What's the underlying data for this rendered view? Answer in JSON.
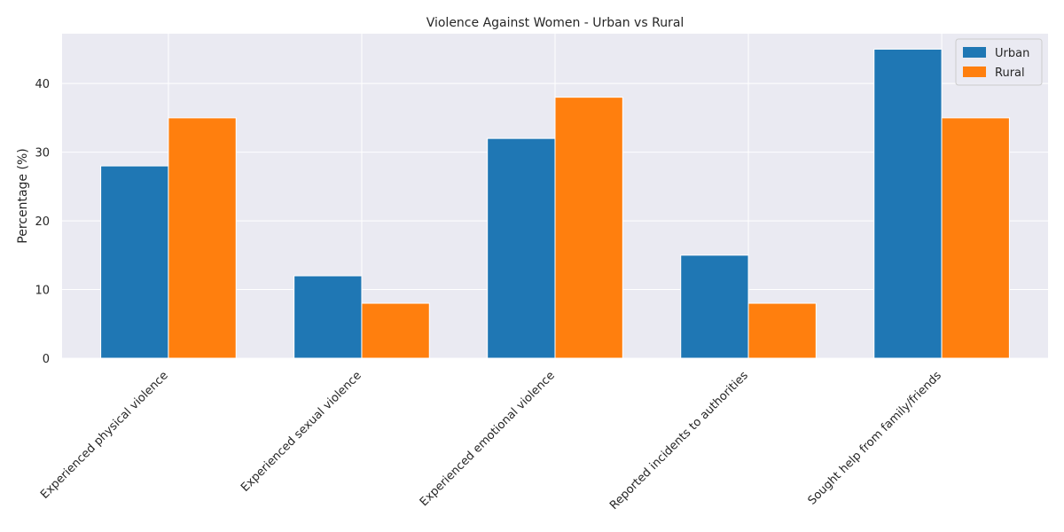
{
  "chart_data": {
    "type": "bar",
    "title": "Violence Against Women - Urban vs Rural",
    "xlabel": "",
    "ylabel": "Percentage (%)",
    "categories": [
      "Experienced physical violence",
      "Experienced sexual violence",
      "Experienced emotional violence",
      "Reported incidents to authorities",
      "Sought help from family/friends"
    ],
    "series": [
      {
        "name": "Urban",
        "color": "#1f77b4",
        "values": [
          28,
          12,
          32,
          15,
          45
        ]
      },
      {
        "name": "Rural",
        "color": "#ff7f0e",
        "values": [
          35,
          8,
          38,
          8,
          35
        ]
      }
    ],
    "ylim": [
      0,
      47.25
    ],
    "yticks": [
      0,
      10,
      20,
      30,
      40
    ],
    "grid": true,
    "legend": "top-right",
    "background_color": "#eaeaf2",
    "grid_color": "#ffffff"
  }
}
